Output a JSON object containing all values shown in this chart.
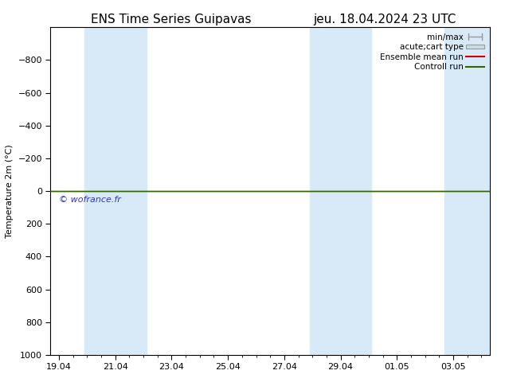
{
  "title_left": "ENS Time Series Guipavas",
  "title_right": "jeu. 18.04.2024 23 UTC",
  "ylabel": "Temperature 2m (°C)",
  "ylim_top": -1000,
  "ylim_bottom": 1000,
  "yticks": [
    -800,
    -600,
    -400,
    -200,
    0,
    200,
    400,
    600,
    800,
    1000
  ],
  "xtick_labels": [
    "19.04",
    "21.04",
    "23.04",
    "25.04",
    "27.04",
    "29.04",
    "01.05",
    "03.05"
  ],
  "xtick_positions": [
    0,
    2,
    4,
    6,
    8,
    10,
    12,
    14
  ],
  "xlim": [
    -0.3,
    15.3
  ],
  "background_color": "#ffffff",
  "plot_bg_color": "#ffffff",
  "shaded_bands": [
    {
      "x_start": 0.9,
      "x_end": 3.1
    },
    {
      "x_start": 8.9,
      "x_end": 11.1
    },
    {
      "x_start": 13.7,
      "x_end": 15.3
    }
  ],
  "shaded_color": "#d8eaf8",
  "horizontal_line_y": 0,
  "green_line_color": "#336600",
  "red_line_color": "#cc0000",
  "watermark": "© wofrance.fr",
  "watermark_color": "#3333bb",
  "title_fontsize": 11,
  "axis_fontsize": 8,
  "tick_fontsize": 8,
  "legend_fontsize": 7.5,
  "errorbar_color": "#999999",
  "box_facecolor": "#c8dde8",
  "box_edgecolor": "#999999"
}
